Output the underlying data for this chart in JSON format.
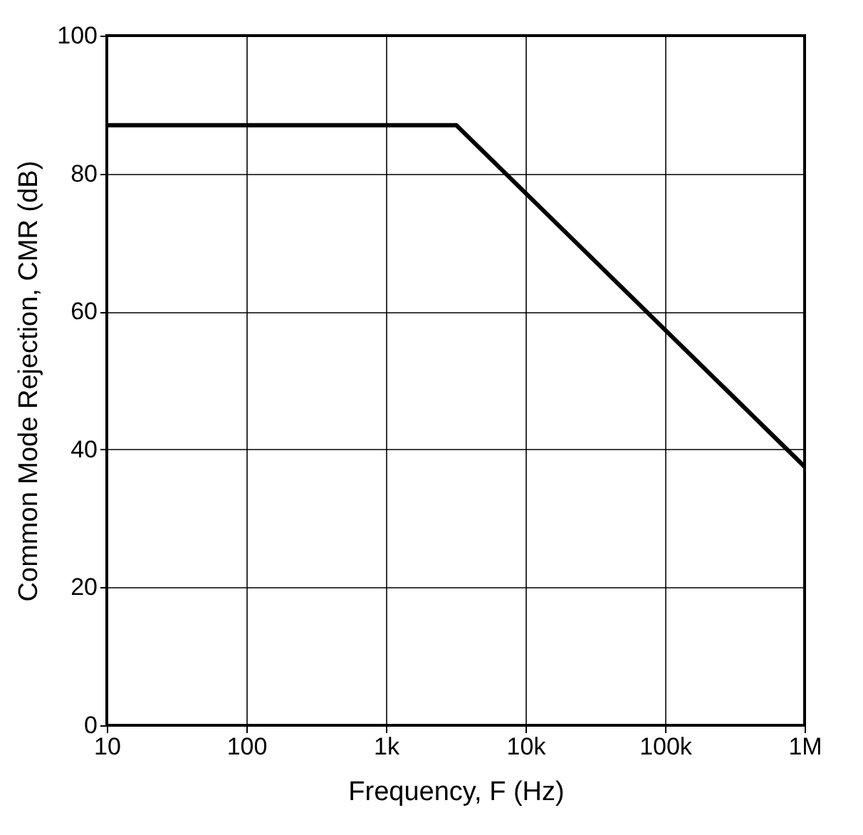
{
  "chart_data": {
    "type": "line",
    "xlabel": "Frequency, F (Hz)",
    "ylabel": "Common Mode Rejection, CMR (dB)",
    "log": "x",
    "grid": true,
    "marker": "none",
    "line_style": "solid",
    "xlim": [
      10,
      1000000
    ],
    "xticks": [
      10,
      100,
      {
        "value": 1000,
        "label": "1k"
      },
      {
        "value": 10000,
        "label": "10k"
      },
      {
        "value": 100000,
        "label": "100k"
      },
      {
        "value": 1000000,
        "label": "1M"
      }
    ],
    "ylim": [
      0,
      100
    ],
    "yticks": [
      0,
      20,
      40,
      60,
      80,
      100
    ],
    "x": [
      10,
      3200,
      1000000
    ],
    "series": [
      {
        "color": "#000000",
        "values": [
          87,
          87,
          37.5
        ]
      }
    ]
  }
}
